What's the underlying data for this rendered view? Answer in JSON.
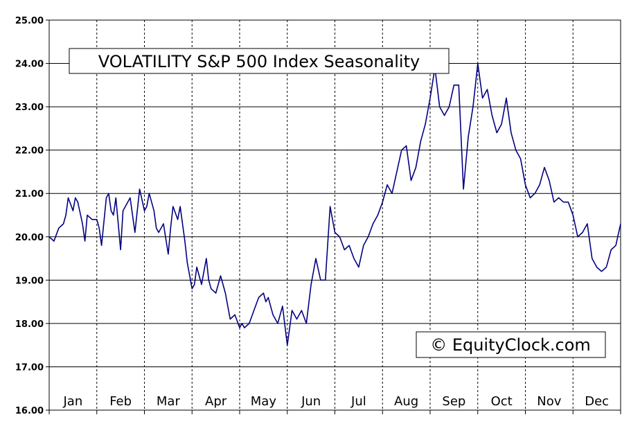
{
  "chart_data": {
    "type": "line",
    "title": "VOLATILITY S&P 500 Index Seasonality",
    "watermark": "© EquityClock.com",
    "xlabel": "",
    "ylabel": "",
    "ylim": [
      16,
      25
    ],
    "yticks": [
      "16.00",
      "17.00",
      "18.00",
      "19.00",
      "20.00",
      "21.00",
      "22.00",
      "23.00",
      "24.00",
      "25.00"
    ],
    "month_labels": [
      "Jan",
      "Feb",
      "Mar",
      "Apr",
      "May",
      "Jun",
      "Jul",
      "Aug",
      "Sep",
      "Oct",
      "Nov",
      "Dec"
    ],
    "line_color": "#000080",
    "grid": true,
    "series": [
      {
        "x": [
          0,
          0.1,
          0.2,
          0.3,
          0.35,
          0.4,
          0.5,
          0.55,
          0.6,
          0.7,
          0.75,
          0.8,
          0.9,
          1.0,
          1.05,
          1.1,
          1.2,
          1.25,
          1.3,
          1.35,
          1.4,
          1.5,
          1.55,
          1.6,
          1.7,
          1.8,
          1.9,
          2.0,
          2.05,
          2.1,
          2.2,
          2.25,
          2.3,
          2.4,
          2.5,
          2.55,
          2.6,
          2.7,
          2.75,
          2.8,
          2.85,
          2.9,
          3.0,
          3.05,
          3.1,
          3.2,
          3.25,
          3.3,
          3.35,
          3.4,
          3.5,
          3.6,
          3.7,
          3.8,
          3.9,
          4.0,
          4.05,
          4.1,
          4.2,
          4.3,
          4.4,
          4.5,
          4.55,
          4.6,
          4.7,
          4.8,
          4.9,
          5.0,
          5.05,
          5.1,
          5.2,
          5.3,
          5.4,
          5.5,
          5.6,
          5.7,
          5.8,
          5.9,
          6.0,
          6.1,
          6.2,
          6.3,
          6.4,
          6.5,
          6.6,
          6.7,
          6.8,
          6.9,
          7.0,
          7.1,
          7.2,
          7.3,
          7.4,
          7.5,
          7.6,
          7.7,
          7.8,
          7.9,
          8.0,
          8.1,
          8.2,
          8.3,
          8.4,
          8.5,
          8.6,
          8.7,
          8.8,
          8.9,
          9.0,
          9.1,
          9.2,
          9.3,
          9.4,
          9.5,
          9.6,
          9.7,
          9.8,
          9.9,
          10.0,
          10.1,
          10.2,
          10.3,
          10.4,
          10.5,
          10.6,
          10.7,
          10.8,
          10.9,
          11.0,
          11.1,
          11.2,
          11.3,
          11.4,
          11.5,
          11.6,
          11.7,
          11.8,
          11.9,
          12.0
        ],
        "y": [
          20.0,
          19.9,
          20.2,
          20.3,
          20.5,
          20.9,
          20.6,
          20.9,
          20.8,
          20.3,
          19.9,
          20.5,
          20.4,
          20.4,
          20.2,
          19.8,
          20.9,
          21.0,
          20.6,
          20.5,
          20.9,
          19.7,
          20.6,
          20.7,
          20.9,
          20.1,
          21.1,
          20.6,
          20.7,
          21.0,
          20.6,
          20.2,
          20.1,
          20.3,
          19.6,
          20.2,
          20.7,
          20.4,
          20.7,
          20.3,
          19.9,
          19.4,
          18.8,
          18.9,
          19.3,
          18.9,
          19.2,
          19.5,
          19.0,
          18.8,
          18.7,
          19.1,
          18.7,
          18.1,
          18.2,
          17.9,
          18.0,
          17.9,
          18.0,
          18.3,
          18.6,
          18.7,
          18.5,
          18.6,
          18.2,
          18.0,
          18.4,
          17.5,
          17.9,
          18.3,
          18.1,
          18.3,
          18.0,
          18.9,
          19.5,
          19.0,
          19.0,
          20.7,
          20.1,
          20.0,
          19.7,
          19.8,
          19.5,
          19.3,
          19.8,
          20.0,
          20.3,
          20.5,
          20.8,
          21.2,
          21.0,
          21.5,
          22.0,
          22.1,
          21.3,
          21.6,
          22.2,
          22.6,
          23.2,
          23.9,
          23.0,
          22.8,
          23.0,
          23.5,
          23.5,
          21.1,
          22.3,
          23.0,
          24.0,
          23.2,
          23.4,
          22.8,
          22.4,
          22.6,
          23.2,
          22.4,
          22.0,
          21.8,
          21.2,
          20.9,
          21.0,
          21.2,
          21.6,
          21.3,
          20.8,
          20.9,
          20.8,
          20.8,
          20.5,
          20.0,
          20.1,
          20.3,
          19.5,
          19.3,
          19.2,
          19.3,
          19.7,
          19.8,
          20.3
        ]
      }
    ]
  }
}
